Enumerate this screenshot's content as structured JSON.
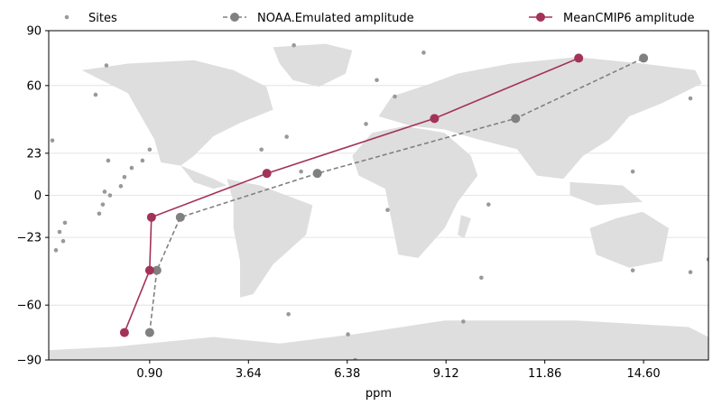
{
  "chart_data": {
    "type": "line",
    "title": "",
    "xlabel": "ppm",
    "ylabel": "",
    "xlim": [
      -1.9,
      16.4
    ],
    "ylim": [
      -90,
      90
    ],
    "xticks": [
      0.9,
      3.64,
      6.38,
      9.12,
      11.86,
      14.6
    ],
    "xtick_labels": [
      "0.90",
      "3.64",
      "6.38",
      "9.12",
      "11.86",
      "14.60"
    ],
    "yticks": [
      -90,
      -60,
      -23,
      0,
      23,
      60,
      90
    ],
    "ytick_labels": [
      "−90",
      "−60",
      "−23",
      "0",
      "23",
      "60",
      "90"
    ],
    "grid": "horizontal",
    "legend_placement": "top",
    "colors": {
      "sites": "#999999",
      "noaa": "#808080",
      "cmip6": "#a3325a",
      "land": "#dedede"
    },
    "series": [
      {
        "name": "Sites",
        "style": "scatter",
        "points": [
          [
            -1.8,
            30
          ],
          [
            -1.7,
            -30
          ],
          [
            -1.6,
            -20
          ],
          [
            -1.5,
            -25
          ],
          [
            -1.45,
            -15
          ],
          [
            -0.6,
            55
          ],
          [
            -0.5,
            -10
          ],
          [
            -0.4,
            -5
          ],
          [
            -0.35,
            2
          ],
          [
            -0.3,
            71
          ],
          [
            -0.25,
            19
          ],
          [
            -0.2,
            0
          ],
          [
            0.1,
            5
          ],
          [
            0.4,
            15
          ],
          [
            0.7,
            19
          ],
          [
            0.2,
            10
          ],
          [
            0.9,
            25
          ],
          [
            4.0,
            25
          ],
          [
            4.7,
            32
          ],
          [
            4.9,
            82
          ],
          [
            5.1,
            13
          ],
          [
            4.75,
            -65
          ],
          [
            6.9,
            39
          ],
          [
            7.2,
            63
          ],
          [
            7.5,
            -8
          ],
          [
            7.7,
            54
          ],
          [
            6.4,
            -76
          ],
          [
            6.6,
            -90
          ],
          [
            8.5,
            78
          ],
          [
            10.1,
            -45
          ],
          [
            10.3,
            -5
          ],
          [
            9.6,
            -69
          ],
          [
            14.3,
            13
          ],
          [
            14.3,
            -41
          ],
          [
            15.9,
            53
          ],
          [
            15.9,
            -42
          ],
          [
            16.4,
            -35
          ]
        ]
      },
      {
        "name": "NOAA.Emulated amplitude",
        "style": "dashed",
        "points": [
          [
            0.9,
            -75
          ],
          [
            1.1,
            -41
          ],
          [
            1.75,
            -12
          ],
          [
            5.55,
            12
          ],
          [
            11.05,
            42
          ],
          [
            14.6,
            75
          ]
        ]
      },
      {
        "name": "MeanCMIP6 amplitude",
        "style": "solid",
        "points": [
          [
            0.2,
            -75
          ],
          [
            0.9,
            -41
          ],
          [
            0.95,
            -12
          ],
          [
            4.15,
            12
          ],
          [
            8.8,
            42
          ],
          [
            12.8,
            75
          ]
        ]
      }
    ]
  }
}
